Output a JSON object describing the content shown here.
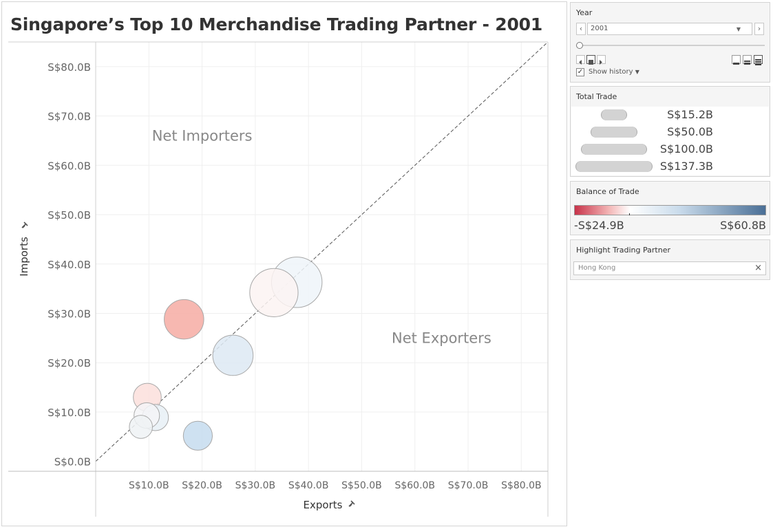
{
  "title": "Singapore’s Top 10 Merchandise Trading Partner - 2001",
  "chart_data": {
    "type": "scatter",
    "title": "Singapore’s Top 10 Merchandise Trading Partner - 2001",
    "xlabel": "Exports",
    "ylabel": "Imports",
    "xlim": [
      0,
      85
    ],
    "ylim": [
      -2,
      85
    ],
    "x_ticks": [
      10,
      20,
      30,
      40,
      50,
      60,
      70,
      80
    ],
    "x_tick_labels": [
      "S$10.0B",
      "S$20.0B",
      "S$30.0B",
      "S$40.0B",
      "S$50.0B",
      "S$60.0B",
      "S$70.0B",
      "S$80.0B"
    ],
    "y_ticks": [
      0,
      10,
      20,
      30,
      40,
      50,
      60,
      70,
      80
    ],
    "y_tick_labels": [
      "S$0.0B",
      "S$10.0B",
      "S$20.0B",
      "S$30.0B",
      "S$40.0B",
      "S$50.0B",
      "S$60.0B",
      "S$70.0B",
      "S$80.0B"
    ],
    "reference_line": "y = x (dashed diagonal)",
    "annotations": [
      {
        "text": "Net Importers",
        "x": 20,
        "y": 65
      },
      {
        "text": "Net Exporters",
        "x": 65,
        "y": 24
      }
    ],
    "grid": true,
    "points": [
      {
        "exports": 37.8,
        "imports": 36.3,
        "total_trade": 74.1,
        "color": "#eef4f9"
      },
      {
        "exports": 33.5,
        "imports": 34.2,
        "total_trade": 67.7,
        "color": "#fcf3f2"
      },
      {
        "exports": 25.8,
        "imports": 21.5,
        "total_trade": 47.3,
        "color": "#dde9f3"
      },
      {
        "exports": 16.6,
        "imports": 28.8,
        "total_trade": 45.4,
        "color": "#f6aba3"
      },
      {
        "exports": 19.2,
        "imports": 5.2,
        "total_trade": 24.4,
        "color": "#c6dcee"
      },
      {
        "exports": 9.7,
        "imports": 13.0,
        "total_trade": 22.7,
        "color": "#fbdfdc"
      },
      {
        "exports": 11.2,
        "imports": 8.9,
        "total_trade": 20.1,
        "color": "#e8f0f6"
      },
      {
        "exports": 9.6,
        "imports": 9.3,
        "total_trade": 18.9,
        "color": "#f5f5f7"
      },
      {
        "exports": 8.5,
        "imports": 7.0,
        "total_trade": 15.5,
        "color": "#eef2f5"
      }
    ]
  },
  "year_filter": {
    "title": "Year",
    "selected": "2001",
    "show_history_label": "Show history"
  },
  "size_legend": {
    "title": "Total Trade",
    "items": [
      {
        "label": "S$15.2B",
        "value": 15.2
      },
      {
        "label": "S$50.0B",
        "value": 50.0
      },
      {
        "label": "S$100.0B",
        "value": 100.0
      },
      {
        "label": "S$137.3B",
        "value": 137.3
      }
    ]
  },
  "color_legend": {
    "title": "Balance of Trade",
    "min_label": "-S$24.9B",
    "max_label": "S$60.8B",
    "min_color": "#c8334a",
    "mid_color": "#ffffff",
    "max_color": "#4a6f96"
  },
  "highlight": {
    "title": "Highlight Trading Partner",
    "value": "Hong Kong"
  }
}
